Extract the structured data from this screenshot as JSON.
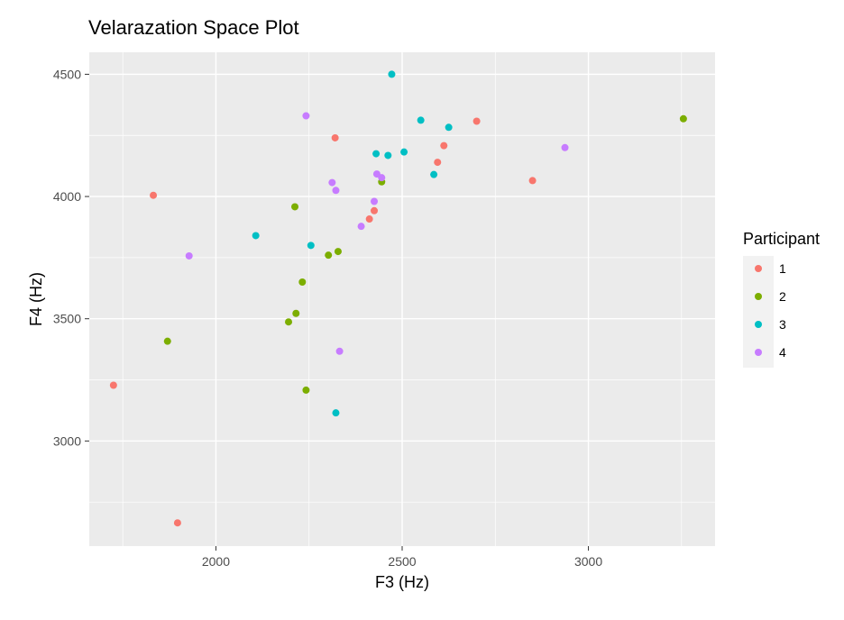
{
  "chart_data": {
    "type": "scatter",
    "title": "Velarazation Space Plot",
    "xlabel": "F3 (Hz)",
    "ylabel": "F4 (Hz)",
    "xlim": [
      1660,
      3340
    ],
    "ylim": [
      2570,
      4590
    ],
    "x_ticks": [
      2000,
      2500,
      3000
    ],
    "x_minor": [
      1750,
      2250,
      2750,
      3250
    ],
    "y_ticks": [
      3000,
      3500,
      4000,
      4500
    ],
    "y_minor": [
      2750,
      3250,
      3750,
      4250
    ],
    "grid": true,
    "background": "#ebebeb",
    "legend": {
      "title": "Participant",
      "placement": "right"
    },
    "series": [
      {
        "name": "1",
        "color": "#F8766D",
        "points": [
          [
            1725,
            3228
          ],
          [
            1832,
            4005
          ],
          [
            1897,
            2665
          ],
          [
            2320,
            4240
          ],
          [
            2412,
            3908
          ],
          [
            2425,
            3942
          ],
          [
            2595,
            4140
          ],
          [
            2612,
            4208
          ],
          [
            2700,
            4308
          ],
          [
            2850,
            4065
          ]
        ]
      },
      {
        "name": "2",
        "color": "#7CAE00",
        "points": [
          [
            1870,
            3408
          ],
          [
            2195,
            3487
          ],
          [
            2212,
            3958
          ],
          [
            2215,
            3522
          ],
          [
            2232,
            3650
          ],
          [
            2242,
            3208
          ],
          [
            2302,
            3760
          ],
          [
            2328,
            3775
          ],
          [
            2445,
            4060
          ],
          [
            3255,
            4318
          ]
        ]
      },
      {
        "name": "3",
        "color": "#00BFC4",
        "points": [
          [
            2107,
            3840
          ],
          [
            2255,
            3800
          ],
          [
            2322,
            3115
          ],
          [
            2430,
            4175
          ],
          [
            2462,
            4168
          ],
          [
            2472,
            4500
          ],
          [
            2505,
            4182
          ],
          [
            2550,
            4312
          ],
          [
            2585,
            4090
          ],
          [
            2625,
            4283
          ]
        ]
      },
      {
        "name": "4",
        "color": "#C77CFF",
        "points": [
          [
            1928,
            3757
          ],
          [
            2242,
            4330
          ],
          [
            2312,
            4057
          ],
          [
            2322,
            4025
          ],
          [
            2332,
            3367
          ],
          [
            2390,
            3878
          ],
          [
            2425,
            3980
          ],
          [
            2432,
            4092
          ],
          [
            2445,
            4077
          ],
          [
            2937,
            4200
          ]
        ]
      }
    ]
  }
}
